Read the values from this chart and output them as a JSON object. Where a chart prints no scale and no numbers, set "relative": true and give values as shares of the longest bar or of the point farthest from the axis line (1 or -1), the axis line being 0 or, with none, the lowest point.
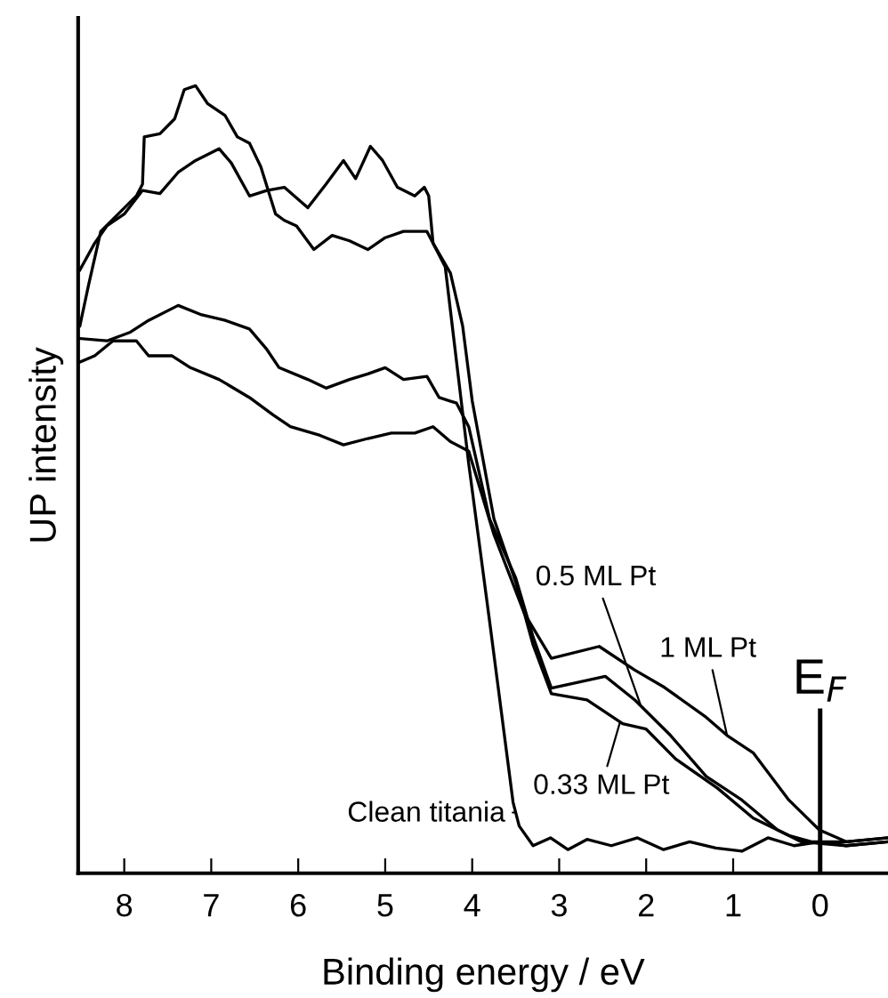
{
  "chart_data": {
    "type": "line",
    "relative": true,
    "xlabel": "Binding energy / eV",
    "ylabel": "UP intensity",
    "xlim": [
      8.53,
      -0.78
    ],
    "xticks": [
      8,
      7,
      6,
      5,
      4,
      3,
      2,
      1,
      0
    ],
    "grid": false,
    "legend": false,
    "marker": "none",
    "line_style": "solid",
    "ref_lines": [
      {
        "axis": "x",
        "value": 0,
        "label": "E$_{F}$",
        "color": "#000000"
      }
    ],
    "series": [
      {
        "name": "Clean titania",
        "color": "#000000",
        "x": [
          8.51,
          8.41,
          8.27,
          8.07,
          7.86,
          7.79,
          7.77,
          7.59,
          7.42,
          7.31,
          7.18,
          7.04,
          6.84,
          6.7,
          6.56,
          6.43,
          6.26,
          6.16,
          6.02,
          5.82,
          5.61,
          5.41,
          5.2,
          5.0,
          4.79,
          4.52,
          4.45,
          4.31,
          4.04,
          3.8,
          3.53,
          3.46,
          3.3,
          3.1,
          2.9,
          2.68,
          2.4,
          2.1,
          1.8,
          1.5,
          1.2,
          0.9,
          0.6,
          0.3,
          0.0,
          -0.3,
          -0.78
        ],
        "values": [
          0.695,
          0.747,
          0.815,
          0.837,
          0.86,
          0.875,
          0.935,
          0.939,
          0.958,
          0.995,
          1.0,
          0.977,
          0.962,
          0.935,
          0.927,
          0.897,
          0.837,
          0.829,
          0.822,
          0.792,
          0.81,
          0.803,
          0.792,
          0.807,
          0.815,
          0.815,
          0.8,
          0.77,
          0.52,
          0.32,
          0.09,
          0.06,
          0.035,
          0.045,
          0.03,
          0.043,
          0.035,
          0.045,
          0.03,
          0.04,
          0.032,
          0.028,
          0.045,
          0.035,
          0.04,
          0.035,
          0.04
        ]
      },
      {
        "name": "0.33 ML Pt",
        "color": "#000000",
        "x": [
          8.51,
          8.34,
          8.2,
          8.0,
          7.79,
          7.59,
          7.38,
          7.18,
          6.91,
          6.77,
          6.56,
          6.36,
          6.16,
          5.89,
          5.68,
          5.48,
          5.34,
          5.17,
          5.03,
          4.86,
          4.66,
          4.55,
          4.5,
          4.45,
          4.25,
          4.11,
          4.0,
          3.75,
          3.5,
          3.3,
          3.09,
          2.68,
          2.27,
          2.0,
          1.66,
          1.18,
          0.77,
          0.36,
          0.1,
          -0.3,
          -0.78
        ],
        "values": [
          0.766,
          0.8,
          0.822,
          0.837,
          0.867,
          0.863,
          0.89,
          0.905,
          0.92,
          0.902,
          0.86,
          0.867,
          0.871,
          0.845,
          0.875,
          0.905,
          0.882,
          0.923,
          0.905,
          0.871,
          0.86,
          0.871,
          0.86,
          0.8,
          0.762,
          0.695,
          0.6,
          0.45,
          0.37,
          0.29,
          0.228,
          0.22,
          0.19,
          0.183,
          0.145,
          0.108,
          0.07,
          0.048,
          0.04,
          0.04,
          0.045
        ]
      },
      {
        "name": "0.5 ML Pt",
        "color": "#000000",
        "x": [
          8.51,
          8.2,
          7.93,
          7.72,
          7.38,
          7.11,
          6.84,
          6.56,
          6.36,
          6.22,
          5.89,
          5.68,
          5.41,
          5.2,
          5.0,
          4.79,
          4.52,
          4.38,
          4.18,
          4.04,
          3.8,
          3.5,
          3.3,
          3.09,
          2.47,
          2.13,
          1.72,
          1.31,
          0.9,
          0.49,
          0.22,
          -0.3,
          -0.78
        ],
        "values": [
          0.679,
          0.676,
          0.687,
          0.702,
          0.721,
          0.709,
          0.702,
          0.691,
          0.665,
          0.642,
          0.627,
          0.616,
          0.627,
          0.634,
          0.642,
          0.627,
          0.631,
          0.604,
          0.597,
          0.567,
          0.45,
          0.375,
          0.3,
          0.235,
          0.25,
          0.22,
          0.175,
          0.123,
          0.093,
          0.055,
          0.04,
          0.035,
          0.04
        ]
      },
      {
        "name": "1 ML Pt",
        "color": "#000000",
        "x": [
          8.51,
          8.34,
          8.13,
          7.86,
          7.72,
          7.45,
          7.24,
          6.91,
          6.56,
          6.29,
          6.09,
          5.75,
          5.48,
          5.2,
          4.93,
          4.66,
          4.45,
          4.25,
          4.04,
          3.75,
          3.4,
          3.09,
          2.54,
          2.13,
          1.79,
          1.31,
          1.07,
          0.77,
          0.36,
          0.01,
          -0.3,
          -0.78
        ],
        "values": [
          0.649,
          0.657,
          0.676,
          0.676,
          0.657,
          0.657,
          0.642,
          0.627,
          0.604,
          0.582,
          0.567,
          0.556,
          0.544,
          0.552,
          0.559,
          0.559,
          0.567,
          0.548,
          0.536,
          0.43,
          0.33,
          0.273,
          0.288,
          0.258,
          0.236,
          0.198,
          0.175,
          0.153,
          0.093,
          0.055,
          0.04,
          0.045
        ]
      }
    ]
  }
}
